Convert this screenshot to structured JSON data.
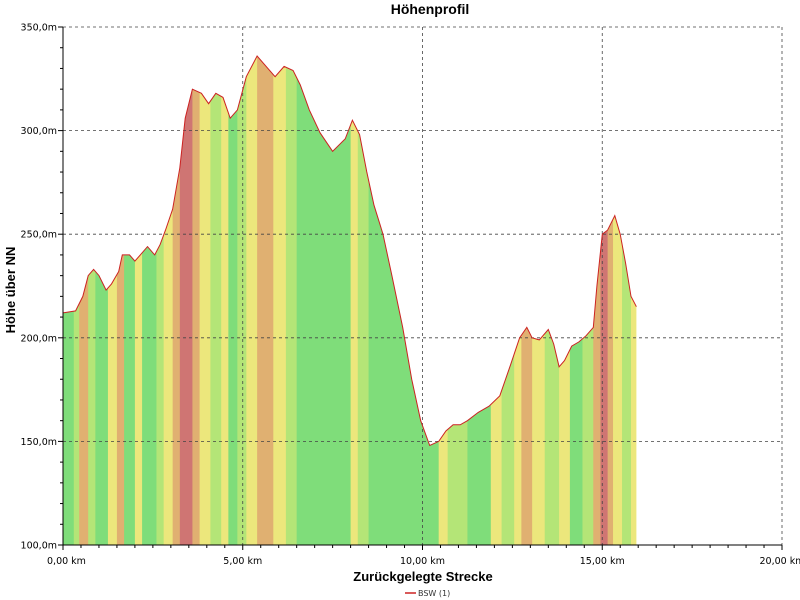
{
  "chart_data": {
    "type": "area",
    "title": "Höhenprofil",
    "xlabel": "Zurückgelegte Strecke",
    "ylabel": "Höhe über NN",
    "xlim": [
      0,
      20
    ],
    "ylim": [
      100,
      350
    ],
    "x_ticks": [
      0,
      5,
      10,
      15,
      20
    ],
    "x_tick_labels": [
      "0,00 km",
      "5,00 km",
      "10,00 km",
      "15,00 km",
      "20,00 km"
    ],
    "y_ticks": [
      100,
      150,
      200,
      250,
      300,
      350
    ],
    "y_tick_labels": [
      "100,0m",
      "150,0m",
      "200,0m",
      "250,0m",
      "300,0m",
      "350,0m"
    ],
    "grid": true,
    "legend": "bottom-center",
    "series": [
      {
        "name": "BSW (1)",
        "color": "#cc2222",
        "x": [
          0.0,
          0.35,
          0.55,
          0.7,
          0.85,
          1.0,
          1.2,
          1.35,
          1.55,
          1.65,
          1.85,
          2.0,
          2.15,
          2.35,
          2.55,
          2.7,
          2.85,
          3.05,
          3.25,
          3.4,
          3.6,
          3.85,
          4.05,
          4.25,
          4.45,
          4.65,
          4.85,
          5.1,
          5.4,
          5.7,
          5.9,
          6.15,
          6.4,
          6.6,
          6.85,
          7.15,
          7.5,
          7.85,
          8.05,
          8.25,
          8.45,
          8.65,
          8.9,
          9.15,
          9.45,
          9.7,
          9.95,
          10.2,
          10.45,
          10.65,
          10.85,
          11.05,
          11.25,
          11.55,
          11.85,
          12.15,
          12.45,
          12.7,
          12.9,
          13.05,
          13.25,
          13.5,
          13.65,
          13.8,
          13.95,
          14.15,
          14.35,
          14.55,
          14.75,
          14.85,
          15.0,
          15.15,
          15.35,
          15.5,
          15.65,
          15.8,
          15.95
        ],
        "y": [
          212,
          213,
          220,
          230,
          233,
          230,
          223,
          226,
          232,
          240,
          240,
          237,
          240,
          244,
          240,
          245,
          252,
          262,
          282,
          306,
          320,
          318,
          313,
          318,
          316,
          306,
          310,
          326,
          336,
          330,
          326,
          331,
          329,
          322,
          310,
          299,
          290,
          296,
          305,
          298,
          280,
          264,
          250,
          230,
          205,
          180,
          160,
          148,
          150,
          155,
          158,
          158,
          160,
          164,
          167,
          172,
          187,
          200,
          205,
          200,
          199,
          204,
          197,
          186,
          189,
          196,
          198,
          201,
          205,
          225,
          250,
          252,
          259,
          250,
          236,
          220,
          215
        ]
      }
    ],
    "gradient_categories": [
      "green",
      "light_green",
      "yellow",
      "orange",
      "red"
    ],
    "gradient_colors": {
      "green": "#7fdd7a",
      "light_green": "#b4e577",
      "yellow": "#ece77c",
      "orange": "#e0b071",
      "red": "#cf7573"
    },
    "gradient_bands": [
      {
        "from": 0.0,
        "to": 0.3,
        "color": "green"
      },
      {
        "from": 0.3,
        "to": 0.45,
        "color": "light_green"
      },
      {
        "from": 0.45,
        "to": 0.7,
        "color": "orange"
      },
      {
        "from": 0.7,
        "to": 0.9,
        "color": "light_green"
      },
      {
        "from": 0.9,
        "to": 1.25,
        "color": "green"
      },
      {
        "from": 1.25,
        "to": 1.5,
        "color": "yellow"
      },
      {
        "from": 1.5,
        "to": 1.7,
        "color": "orange"
      },
      {
        "from": 1.7,
        "to": 2.0,
        "color": "green"
      },
      {
        "from": 2.0,
        "to": 2.2,
        "color": "yellow"
      },
      {
        "from": 2.2,
        "to": 2.6,
        "color": "green"
      },
      {
        "from": 2.6,
        "to": 2.8,
        "color": "light_green"
      },
      {
        "from": 2.8,
        "to": 3.05,
        "color": "yellow"
      },
      {
        "from": 3.05,
        "to": 3.25,
        "color": "orange"
      },
      {
        "from": 3.25,
        "to": 3.6,
        "color": "red"
      },
      {
        "from": 3.6,
        "to": 3.8,
        "color": "orange"
      },
      {
        "from": 3.8,
        "to": 4.1,
        "color": "yellow"
      },
      {
        "from": 4.1,
        "to": 4.4,
        "color": "light_green"
      },
      {
        "from": 4.4,
        "to": 4.6,
        "color": "yellow"
      },
      {
        "from": 4.6,
        "to": 4.85,
        "color": "green"
      },
      {
        "from": 4.85,
        "to": 5.1,
        "color": "light_green"
      },
      {
        "from": 5.1,
        "to": 5.4,
        "color": "yellow"
      },
      {
        "from": 5.4,
        "to": 5.85,
        "color": "orange"
      },
      {
        "from": 5.85,
        "to": 6.2,
        "color": "yellow"
      },
      {
        "from": 6.2,
        "to": 6.5,
        "color": "light_green"
      },
      {
        "from": 6.5,
        "to": 8.0,
        "color": "green"
      },
      {
        "from": 8.0,
        "to": 8.2,
        "color": "yellow"
      },
      {
        "from": 8.2,
        "to": 8.5,
        "color": "light_green"
      },
      {
        "from": 8.5,
        "to": 10.45,
        "color": "green"
      },
      {
        "from": 10.45,
        "to": 10.7,
        "color": "yellow"
      },
      {
        "from": 10.7,
        "to": 11.25,
        "color": "light_green"
      },
      {
        "from": 11.25,
        "to": 11.9,
        "color": "green"
      },
      {
        "from": 11.9,
        "to": 12.2,
        "color": "yellow"
      },
      {
        "from": 12.2,
        "to": 12.55,
        "color": "light_green"
      },
      {
        "from": 12.55,
        "to": 12.75,
        "color": "yellow"
      },
      {
        "from": 12.75,
        "to": 13.05,
        "color": "orange"
      },
      {
        "from": 13.05,
        "to": 13.4,
        "color": "yellow"
      },
      {
        "from": 13.4,
        "to": 13.8,
        "color": "light_green"
      },
      {
        "from": 13.8,
        "to": 14.1,
        "color": "yellow"
      },
      {
        "from": 14.1,
        "to": 14.45,
        "color": "green"
      },
      {
        "from": 14.45,
        "to": 14.75,
        "color": "light_green"
      },
      {
        "from": 14.75,
        "to": 14.95,
        "color": "orange"
      },
      {
        "from": 14.95,
        "to": 15.15,
        "color": "red"
      },
      {
        "from": 15.15,
        "to": 15.3,
        "color": "orange"
      },
      {
        "from": 15.3,
        "to": 15.55,
        "color": "yellow"
      },
      {
        "from": 15.55,
        "to": 15.8,
        "color": "light_green"
      },
      {
        "from": 15.8,
        "to": 15.95,
        "color": "yellow"
      }
    ]
  }
}
